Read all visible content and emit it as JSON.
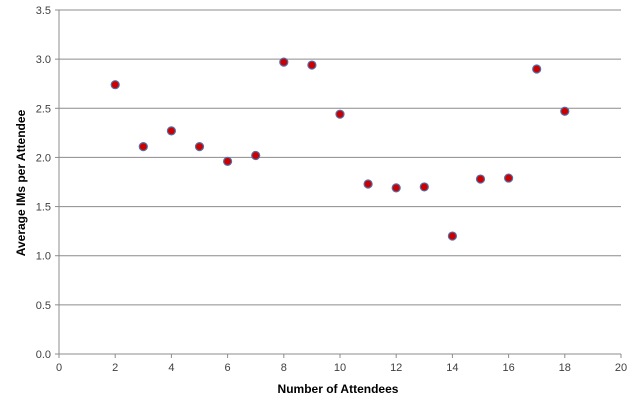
{
  "chart_data": {
    "type": "scatter",
    "title": "",
    "xlabel": "Number of Attendees",
    "ylabel": "Average IMs per Attendee",
    "xlim": [
      0,
      20
    ],
    "ylim": [
      0,
      3.5
    ],
    "x_ticks": [
      "0",
      "2",
      "4",
      "6",
      "8",
      "10",
      "12",
      "14",
      "16",
      "18",
      "20"
    ],
    "y_ticks": [
      "0.0",
      "0.5",
      "1.0",
      "1.5",
      "2.0",
      "2.5",
      "3.0",
      "3.5"
    ],
    "grid": "horizontal",
    "legend": "none",
    "series": [
      {
        "x": [
          2,
          3,
          4,
          5,
          6,
          7,
          8,
          9,
          10,
          11,
          12,
          13,
          14,
          15,
          16,
          17,
          18
        ],
        "y": [
          2.74,
          2.11,
          2.27,
          2.11,
          1.96,
          2.02,
          2.97,
          2.94,
          2.44,
          1.73,
          1.69,
          1.7,
          1.2,
          1.78,
          1.79,
          2.9,
          2.47
        ],
        "marker_fill": "#cc0000",
        "marker_edge": "#4f6fa8"
      }
    ]
  }
}
